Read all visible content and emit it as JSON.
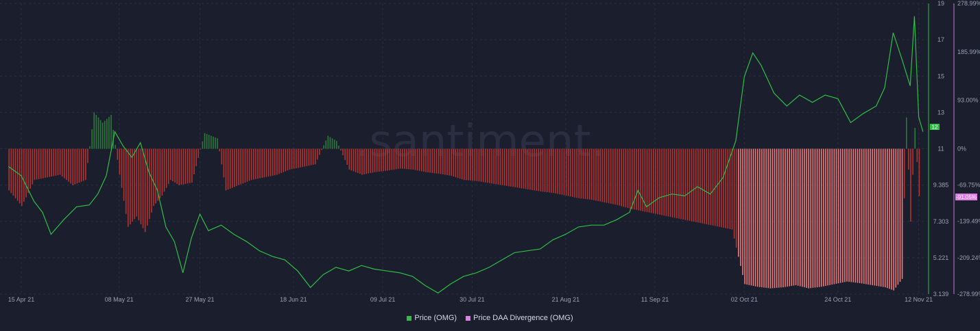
{
  "watermark": ".santiment.",
  "legend": [
    {
      "label": "Price (OMG)",
      "color": "#2fbf45"
    },
    {
      "label": "Price DAA Divergence (OMG)",
      "color": "#e07ee8"
    }
  ],
  "badges": {
    "price_value": "12",
    "price_color": "#2fbf45",
    "divergence_value": "-91.05%",
    "divergence_color": "#e07ee8"
  },
  "chart_data": {
    "type": "line",
    "x_ticks": [
      "15 Apr 21",
      "08 May 21",
      "27 May 21",
      "18 Jun 21",
      "09 Jul 21",
      "30 Jul 21",
      "21 Aug 21",
      "11 Sep 21",
      "02 Oct 21",
      "24 Oct 21",
      "12 Nov 21"
    ],
    "y_left_ticks": [
      "19",
      "17",
      "15",
      "13",
      "11",
      "9.385",
      "7.303",
      "5.221",
      "3.139"
    ],
    "y_right_ticks": [
      "278.99%",
      "185.99%",
      "93.00%",
      "0%",
      "-69.75%",
      "-139.49%",
      "-209.24%",
      "-278.99%"
    ],
    "series": [
      {
        "name": "Price (OMG)",
        "color": "#2fbf45",
        "points": [
          [
            "2021-04-12",
            10.1
          ],
          [
            "2021-04-15",
            9.6
          ],
          [
            "2021-04-18",
            8.2
          ],
          [
            "2021-04-20",
            7.6
          ],
          [
            "2021-04-22",
            6.4
          ],
          [
            "2021-04-25",
            7.2
          ],
          [
            "2021-04-28",
            7.9
          ],
          [
            "2021-05-01",
            8.0
          ],
          [
            "2021-05-03",
            8.6
          ],
          [
            "2021-05-05",
            9.6
          ],
          [
            "2021-05-07",
            12.0
          ],
          [
            "2021-05-09",
            11.2
          ],
          [
            "2021-05-11",
            10.6
          ],
          [
            "2021-05-13",
            11.4
          ],
          [
            "2021-05-15",
            9.8
          ],
          [
            "2021-05-17",
            8.8
          ],
          [
            "2021-05-19",
            6.8
          ],
          [
            "2021-05-21",
            6.0
          ],
          [
            "2021-05-23",
            4.3
          ],
          [
            "2021-05-25",
            6.2
          ],
          [
            "2021-05-27",
            7.5
          ],
          [
            "2021-05-29",
            6.6
          ],
          [
            "2021-06-01",
            6.9
          ],
          [
            "2021-06-04",
            6.4
          ],
          [
            "2021-06-07",
            6.0
          ],
          [
            "2021-06-10",
            5.5
          ],
          [
            "2021-06-13",
            5.2
          ],
          [
            "2021-06-16",
            5.0
          ],
          [
            "2021-06-19",
            4.4
          ],
          [
            "2021-06-22",
            3.5
          ],
          [
            "2021-06-25",
            4.2
          ],
          [
            "2021-06-28",
            4.6
          ],
          [
            "2021-07-01",
            4.4
          ],
          [
            "2021-07-04",
            4.7
          ],
          [
            "2021-07-07",
            4.5
          ],
          [
            "2021-07-10",
            4.4
          ],
          [
            "2021-07-13",
            4.3
          ],
          [
            "2021-07-16",
            4.1
          ],
          [
            "2021-07-19",
            3.6
          ],
          [
            "2021-07-22",
            3.2
          ],
          [
            "2021-07-25",
            3.7
          ],
          [
            "2021-07-28",
            4.1
          ],
          [
            "2021-07-31",
            4.3
          ],
          [
            "2021-08-03",
            4.6
          ],
          [
            "2021-08-06",
            5.0
          ],
          [
            "2021-08-09",
            5.4
          ],
          [
            "2021-08-12",
            5.5
          ],
          [
            "2021-08-15",
            5.6
          ],
          [
            "2021-08-18",
            6.1
          ],
          [
            "2021-08-21",
            6.4
          ],
          [
            "2021-08-24",
            6.8
          ],
          [
            "2021-08-27",
            6.9
          ],
          [
            "2021-08-30",
            6.9
          ],
          [
            "2021-09-02",
            7.2
          ],
          [
            "2021-09-05",
            7.6
          ],
          [
            "2021-09-07",
            8.8
          ],
          [
            "2021-09-09",
            7.9
          ],
          [
            "2021-09-12",
            8.4
          ],
          [
            "2021-09-15",
            8.6
          ],
          [
            "2021-09-18",
            8.5
          ],
          [
            "2021-09-21",
            9.0
          ],
          [
            "2021-09-24",
            8.6
          ],
          [
            "2021-09-27",
            9.5
          ],
          [
            "2021-09-30",
            11.5
          ],
          [
            "2021-10-02",
            15.0
          ],
          [
            "2021-10-04",
            16.3
          ],
          [
            "2021-10-06",
            15.6
          ],
          [
            "2021-10-09",
            14.1
          ],
          [
            "2021-10-12",
            13.4
          ],
          [
            "2021-10-15",
            14.0
          ],
          [
            "2021-10-18",
            13.6
          ],
          [
            "2021-10-21",
            14.0
          ],
          [
            "2021-10-24",
            13.8
          ],
          [
            "2021-10-27",
            12.5
          ],
          [
            "2021-10-30",
            13.0
          ],
          [
            "2021-11-02",
            13.4
          ],
          [
            "2021-11-04",
            14.4
          ],
          [
            "2021-11-06",
            17.4
          ],
          [
            "2021-11-08",
            16.0
          ],
          [
            "2021-11-10",
            14.5
          ],
          [
            "2021-11-11",
            18.3
          ],
          [
            "2021-11-12",
            12.8
          ],
          [
            "2021-11-13",
            12.0
          ]
        ]
      },
      {
        "name": "Price DAA Divergence (OMG)",
        "color_positive": "#2c7a3a",
        "color_negative": "#d9534f",
        "points": [
          [
            "2021-04-12",
            -80
          ],
          [
            "2021-04-15",
            -110
          ],
          [
            "2021-04-18",
            -60
          ],
          [
            "2021-04-21",
            -55
          ],
          [
            "2021-04-24",
            -50
          ],
          [
            "2021-04-27",
            -70
          ],
          [
            "2021-04-30",
            -60
          ],
          [
            "2021-05-02",
            70
          ],
          [
            "2021-05-04",
            50
          ],
          [
            "2021-05-06",
            65
          ],
          [
            "2021-05-08",
            -50
          ],
          [
            "2021-05-10",
            -150
          ],
          [
            "2021-05-12",
            -130
          ],
          [
            "2021-05-14",
            -160
          ],
          [
            "2021-05-16",
            -110
          ],
          [
            "2021-05-18",
            -90
          ],
          [
            "2021-05-20",
            -60
          ],
          [
            "2021-05-22",
            -70
          ],
          [
            "2021-05-25",
            -65
          ],
          [
            "2021-05-28",
            30
          ],
          [
            "2021-05-31",
            20
          ],
          [
            "2021-06-02",
            -80
          ],
          [
            "2021-06-05",
            -70
          ],
          [
            "2021-06-08",
            -60
          ],
          [
            "2021-06-11",
            -55
          ],
          [
            "2021-06-14",
            -50
          ],
          [
            "2021-06-17",
            -40
          ],
          [
            "2021-06-20",
            -35
          ],
          [
            "2021-06-23",
            -30
          ],
          [
            "2021-06-26",
            25
          ],
          [
            "2021-06-28",
            15
          ],
          [
            "2021-07-01",
            -40
          ],
          [
            "2021-07-04",
            -50
          ],
          [
            "2021-07-07",
            -45
          ],
          [
            "2021-07-10",
            -42
          ],
          [
            "2021-07-13",
            -38
          ],
          [
            "2021-07-16",
            -40
          ],
          [
            "2021-07-19",
            -45
          ],
          [
            "2021-07-22",
            -48
          ],
          [
            "2021-07-25",
            -52
          ],
          [
            "2021-07-28",
            -60
          ],
          [
            "2021-07-31",
            -62
          ],
          [
            "2021-08-03",
            -66
          ],
          [
            "2021-08-06",
            -70
          ],
          [
            "2021-08-09",
            -74
          ],
          [
            "2021-08-12",
            -78
          ],
          [
            "2021-08-15",
            -82
          ],
          [
            "2021-08-18",
            -85
          ],
          [
            "2021-08-21",
            -90
          ],
          [
            "2021-08-24",
            -95
          ],
          [
            "2021-08-27",
            -98
          ],
          [
            "2021-08-30",
            -103
          ],
          [
            "2021-09-02",
            -108
          ],
          [
            "2021-09-05",
            -115
          ],
          [
            "2021-09-08",
            -120
          ],
          [
            "2021-09-11",
            -125
          ],
          [
            "2021-09-14",
            -130
          ],
          [
            "2021-09-17",
            -135
          ],
          [
            "2021-09-20",
            -140
          ],
          [
            "2021-09-23",
            -145
          ],
          [
            "2021-09-26",
            -150
          ],
          [
            "2021-09-29",
            -155
          ],
          [
            "2021-10-02",
            -260
          ],
          [
            "2021-10-05",
            -265
          ],
          [
            "2021-10-08",
            -268
          ],
          [
            "2021-10-11",
            -266
          ],
          [
            "2021-10-14",
            -262
          ],
          [
            "2021-10-17",
            -268
          ],
          [
            "2021-10-20",
            -265
          ],
          [
            "2021-10-23",
            -260
          ],
          [
            "2021-10-26",
            -255
          ],
          [
            "2021-10-29",
            -258
          ],
          [
            "2021-11-01",
            -262
          ],
          [
            "2021-11-04",
            -266
          ],
          [
            "2021-11-06",
            -272
          ],
          [
            "2021-11-08",
            -250
          ],
          [
            "2021-11-09",
            60
          ],
          [
            "2021-11-10",
            -140
          ],
          [
            "2021-11-11",
            40
          ],
          [
            "2021-11-12",
            -91.05
          ]
        ]
      }
    ]
  }
}
